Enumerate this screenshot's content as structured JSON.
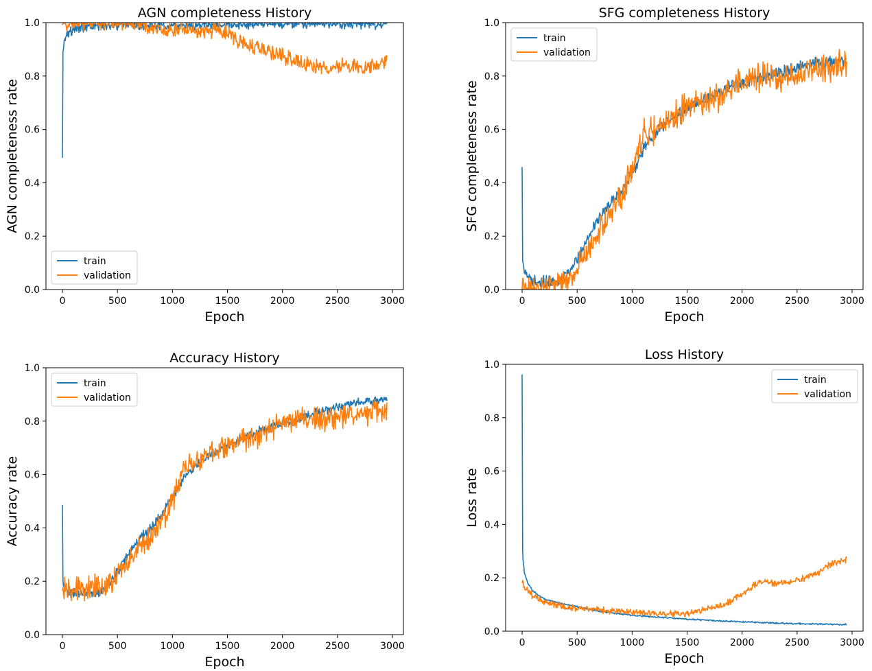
{
  "colors": {
    "train": "#1f77b4",
    "validation": "#ff7f0e"
  },
  "chart_data": [
    {
      "type": "line",
      "title": "AGN completeness History",
      "xlabel": "Epoch",
      "ylabel": "AGN completeness rate",
      "xlim": [
        -150,
        3100
      ],
      "ylim": [
        0,
        1
      ],
      "xticks": [
        0,
        500,
        1000,
        1500,
        2000,
        2500,
        3000
      ],
      "yticks": [
        0.0,
        0.2,
        0.4,
        0.6,
        0.8,
        1.0
      ],
      "legend_position": "lower-left",
      "grid": false,
      "series": [
        {
          "name": "train",
          "color": "#1f77b4",
          "noise": 0.012,
          "x": [
            0,
            2,
            5,
            10,
            20,
            40,
            80,
            150,
            300,
            600,
            1000,
            1500,
            2000,
            2500,
            2950
          ],
          "y": [
            0.49,
            0.85,
            0.9,
            0.92,
            0.94,
            0.96,
            0.97,
            0.98,
            0.99,
            0.99,
            0.99,
            0.99,
            0.995,
            0.995,
            0.995
          ]
        },
        {
          "name": "validation",
          "color": "#ff7f0e",
          "noise": 0.02,
          "x": [
            0,
            100,
            700,
            800,
            1000,
            1200,
            1400,
            1500,
            1600,
            1700,
            1800,
            2000,
            2200,
            2400,
            2600,
            2800,
            2950
          ],
          "y": [
            1.0,
            1.0,
            1.0,
            0.98,
            0.97,
            0.97,
            0.97,
            0.96,
            0.93,
            0.92,
            0.9,
            0.88,
            0.84,
            0.83,
            0.84,
            0.83,
            0.86
          ]
        }
      ]
    },
    {
      "type": "line",
      "title": "SFG completeness History",
      "xlabel": "Epoch",
      "ylabel": "SFG completeness rate",
      "xlim": [
        -150,
        3100
      ],
      "ylim": [
        0,
        1
      ],
      "xticks": [
        0,
        500,
        1000,
        1500,
        2000,
        2500,
        3000
      ],
      "yticks": [
        0.0,
        0.2,
        0.4,
        0.6,
        0.8,
        1.0
      ],
      "legend_position": "upper-left",
      "grid": false,
      "series": [
        {
          "name": "train",
          "color": "#1f77b4",
          "noise": 0.015,
          "x": [
            0,
            5,
            20,
            60,
            150,
            250,
            350,
            450,
            550,
            650,
            750,
            850,
            950,
            1050,
            1150,
            1300,
            1500,
            1700,
            1900,
            2100,
            2300,
            2500,
            2700,
            2950
          ],
          "y": [
            0.48,
            0.1,
            0.06,
            0.04,
            0.03,
            0.03,
            0.04,
            0.08,
            0.15,
            0.24,
            0.3,
            0.34,
            0.4,
            0.48,
            0.56,
            0.62,
            0.68,
            0.72,
            0.76,
            0.79,
            0.81,
            0.83,
            0.85,
            0.86
          ]
        },
        {
          "name": "validation",
          "color": "#ff7f0e",
          "noise": 0.035,
          "x": [
            0,
            20,
            100,
            200,
            300,
            400,
            500,
            600,
            700,
            800,
            900,
            1000,
            1100,
            1200,
            1400,
            1600,
            1800,
            2000,
            2200,
            2400,
            2600,
            2800,
            2950
          ],
          "y": [
            0.02,
            0.0,
            0.0,
            0.01,
            0.02,
            0.02,
            0.08,
            0.16,
            0.22,
            0.28,
            0.34,
            0.45,
            0.58,
            0.6,
            0.66,
            0.7,
            0.72,
            0.78,
            0.8,
            0.8,
            0.82,
            0.83,
            0.85
          ]
        }
      ]
    },
    {
      "type": "line",
      "title": "Accuracy History",
      "xlabel": "Epoch",
      "ylabel": "Accuracy rate",
      "xlim": [
        -150,
        3100
      ],
      "ylim": [
        0,
        1
      ],
      "xticks": [
        0,
        500,
        1000,
        1500,
        2000,
        2500,
        3000
      ],
      "yticks": [
        0.0,
        0.2,
        0.4,
        0.6,
        0.8,
        1.0
      ],
      "legend_position": "upper-left",
      "grid": false,
      "series": [
        {
          "name": "train",
          "color": "#1f77b4",
          "noise": 0.012,
          "x": [
            0,
            5,
            20,
            60,
            150,
            250,
            350,
            450,
            550,
            650,
            750,
            850,
            950,
            1050,
            1150,
            1300,
            1500,
            1700,
            1900,
            2100,
            2300,
            2500,
            2700,
            2950
          ],
          "y": [
            0.48,
            0.2,
            0.17,
            0.16,
            0.15,
            0.15,
            0.16,
            0.2,
            0.27,
            0.33,
            0.38,
            0.42,
            0.48,
            0.55,
            0.61,
            0.66,
            0.71,
            0.75,
            0.78,
            0.8,
            0.83,
            0.85,
            0.87,
            0.88
          ]
        },
        {
          "name": "validation",
          "color": "#ff7f0e",
          "noise": 0.03,
          "x": [
            0,
            20,
            100,
            200,
            300,
            400,
            500,
            600,
            700,
            800,
            900,
            1000,
            1100,
            1200,
            1400,
            1600,
            1800,
            2000,
            2200,
            2400,
            2600,
            2800,
            2950
          ],
          "y": [
            0.17,
            0.17,
            0.17,
            0.17,
            0.18,
            0.18,
            0.22,
            0.28,
            0.33,
            0.36,
            0.42,
            0.5,
            0.62,
            0.64,
            0.69,
            0.72,
            0.75,
            0.8,
            0.82,
            0.8,
            0.82,
            0.83,
            0.84
          ]
        }
      ]
    },
    {
      "type": "line",
      "title": "Loss History",
      "xlabel": "Epoch",
      "ylabel": "Loss rate",
      "xlim": [
        -150,
        3100
      ],
      "ylim": [
        0,
        1
      ],
      "xticks": [
        0,
        500,
        1000,
        1500,
        2000,
        2500,
        3000
      ],
      "yticks": [
        0.0,
        0.2,
        0.4,
        0.6,
        0.8,
        1.0
      ],
      "legend_position": "upper-right",
      "grid": false,
      "series": [
        {
          "name": "train",
          "color": "#1f77b4",
          "noise": 0.002,
          "x": [
            0,
            2,
            5,
            10,
            20,
            50,
            100,
            200,
            400,
            700,
            1000,
            1500,
            2000,
            2500,
            2950
          ],
          "y": [
            0.96,
            0.4,
            0.3,
            0.26,
            0.22,
            0.18,
            0.15,
            0.12,
            0.1,
            0.075,
            0.06,
            0.045,
            0.035,
            0.028,
            0.025
          ]
        },
        {
          "name": "validation",
          "color": "#ff7f0e",
          "noise": 0.008,
          "x": [
            0,
            30,
            100,
            200,
            400,
            700,
            1000,
            1300,
            1500,
            1700,
            1900,
            2000,
            2100,
            2200,
            2300,
            2500,
            2700,
            2800,
            2950
          ],
          "y": [
            0.18,
            0.16,
            0.13,
            0.11,
            0.09,
            0.08,
            0.07,
            0.065,
            0.065,
            0.085,
            0.11,
            0.14,
            0.17,
            0.19,
            0.18,
            0.19,
            0.22,
            0.25,
            0.27
          ]
        }
      ]
    }
  ]
}
